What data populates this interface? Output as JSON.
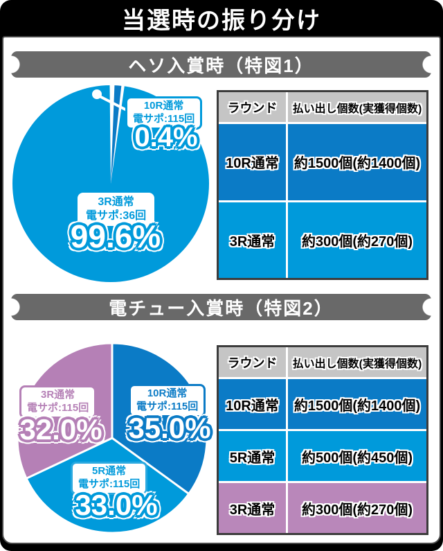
{
  "title": "当選時の振り分け",
  "colors": {
    "light_blue": "#009adb",
    "dark_blue": "#0b7bc6",
    "purple": "#b580b6",
    "table_purple": "#b987ba",
    "band_gray": "#696969",
    "table_header_gray": "#c5c5c5",
    "frame_black": "#000000"
  },
  "sections": [
    {
      "heading": "ヘソ入賞時（特図1）",
      "table": {
        "headers": [
          "ラウンド",
          "払い出し個数(実獲得個数)"
        ],
        "rows": [
          {
            "round": "10R通常",
            "payout": "約1500個(約1400個)",
            "color": "#0b7bc6"
          },
          {
            "round": "3R通常",
            "payout": "約300個(約270個)",
            "color": "#009adb"
          }
        ]
      }
    },
    {
      "heading": "電チュー入賞時（特図2）",
      "table": {
        "headers": [
          "ラウンド",
          "払い出し個数(実獲得個数)"
        ],
        "rows": [
          {
            "round": "10R通常",
            "payout": "約1500個(約1400個)",
            "color": "#0b7bc6"
          },
          {
            "round": "5R通常",
            "payout": "約500個(約450個)",
            "color": "#009adb"
          },
          {
            "round": "3R通常",
            "payout": "約300個(約270個)",
            "color": "#b987ba"
          }
        ]
      }
    }
  ],
  "chart_data": [
    {
      "type": "pie",
      "title": "ヘソ入賞時（特図1）",
      "unit": "%",
      "legend_position": "on-slice",
      "slices": [
        {
          "label": "10R通常",
          "sub": "電サポ:115回",
          "value": 0.4,
          "pct": "0.4%",
          "color": "#0b7bc6"
        },
        {
          "label": "3R通常",
          "sub": "電サポ:36回",
          "value": 99.6,
          "pct": "99.6%",
          "color": "#009adb"
        }
      ]
    },
    {
      "type": "pie",
      "title": "電チュー入賞時（特図2）",
      "unit": "%",
      "legend_position": "on-slice",
      "slices": [
        {
          "label": "10R通常",
          "sub": "電サポ:115回",
          "value": 35.0,
          "pct": "35.0%",
          "color": "#0b7bc6"
        },
        {
          "label": "5R通常",
          "sub": "電サポ:115回",
          "value": 33.0,
          "pct": "33.0%",
          "color": "#009adb"
        },
        {
          "label": "3R通常",
          "sub": "電サポ:115回",
          "value": 32.0,
          "pct": "32.0%",
          "color": "#b580b6"
        }
      ]
    }
  ]
}
